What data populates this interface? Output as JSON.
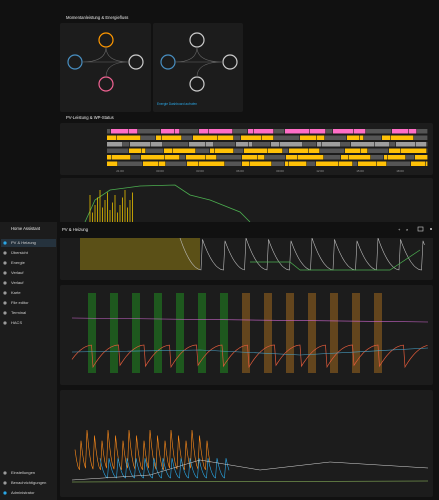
{
  "sections": {
    "energy_flow": "Momentanleistung & Energiefluss",
    "energy_link": "Energie Dashboard aufrufen",
    "pv_status": "PV-Leistung & WP-Status"
  },
  "time_labels": [
    "21:00",
    "00:00",
    "03:00",
    "06:00",
    "09:00",
    "12:00",
    "15:00",
    "18:00"
  ],
  "sidebar": {
    "title": "Home Assistant",
    "items": [
      "PV & Heizung",
      "Übersicht",
      "Energie",
      "Verlauf",
      "Verlauf",
      "Karte",
      "File editor",
      "Terminal",
      "HACS"
    ],
    "bottom": [
      "Einstellungen",
      "Benachrichtigungen",
      "Administrator"
    ]
  },
  "toolbar": {
    "title": "PV & Heizung"
  }
}
